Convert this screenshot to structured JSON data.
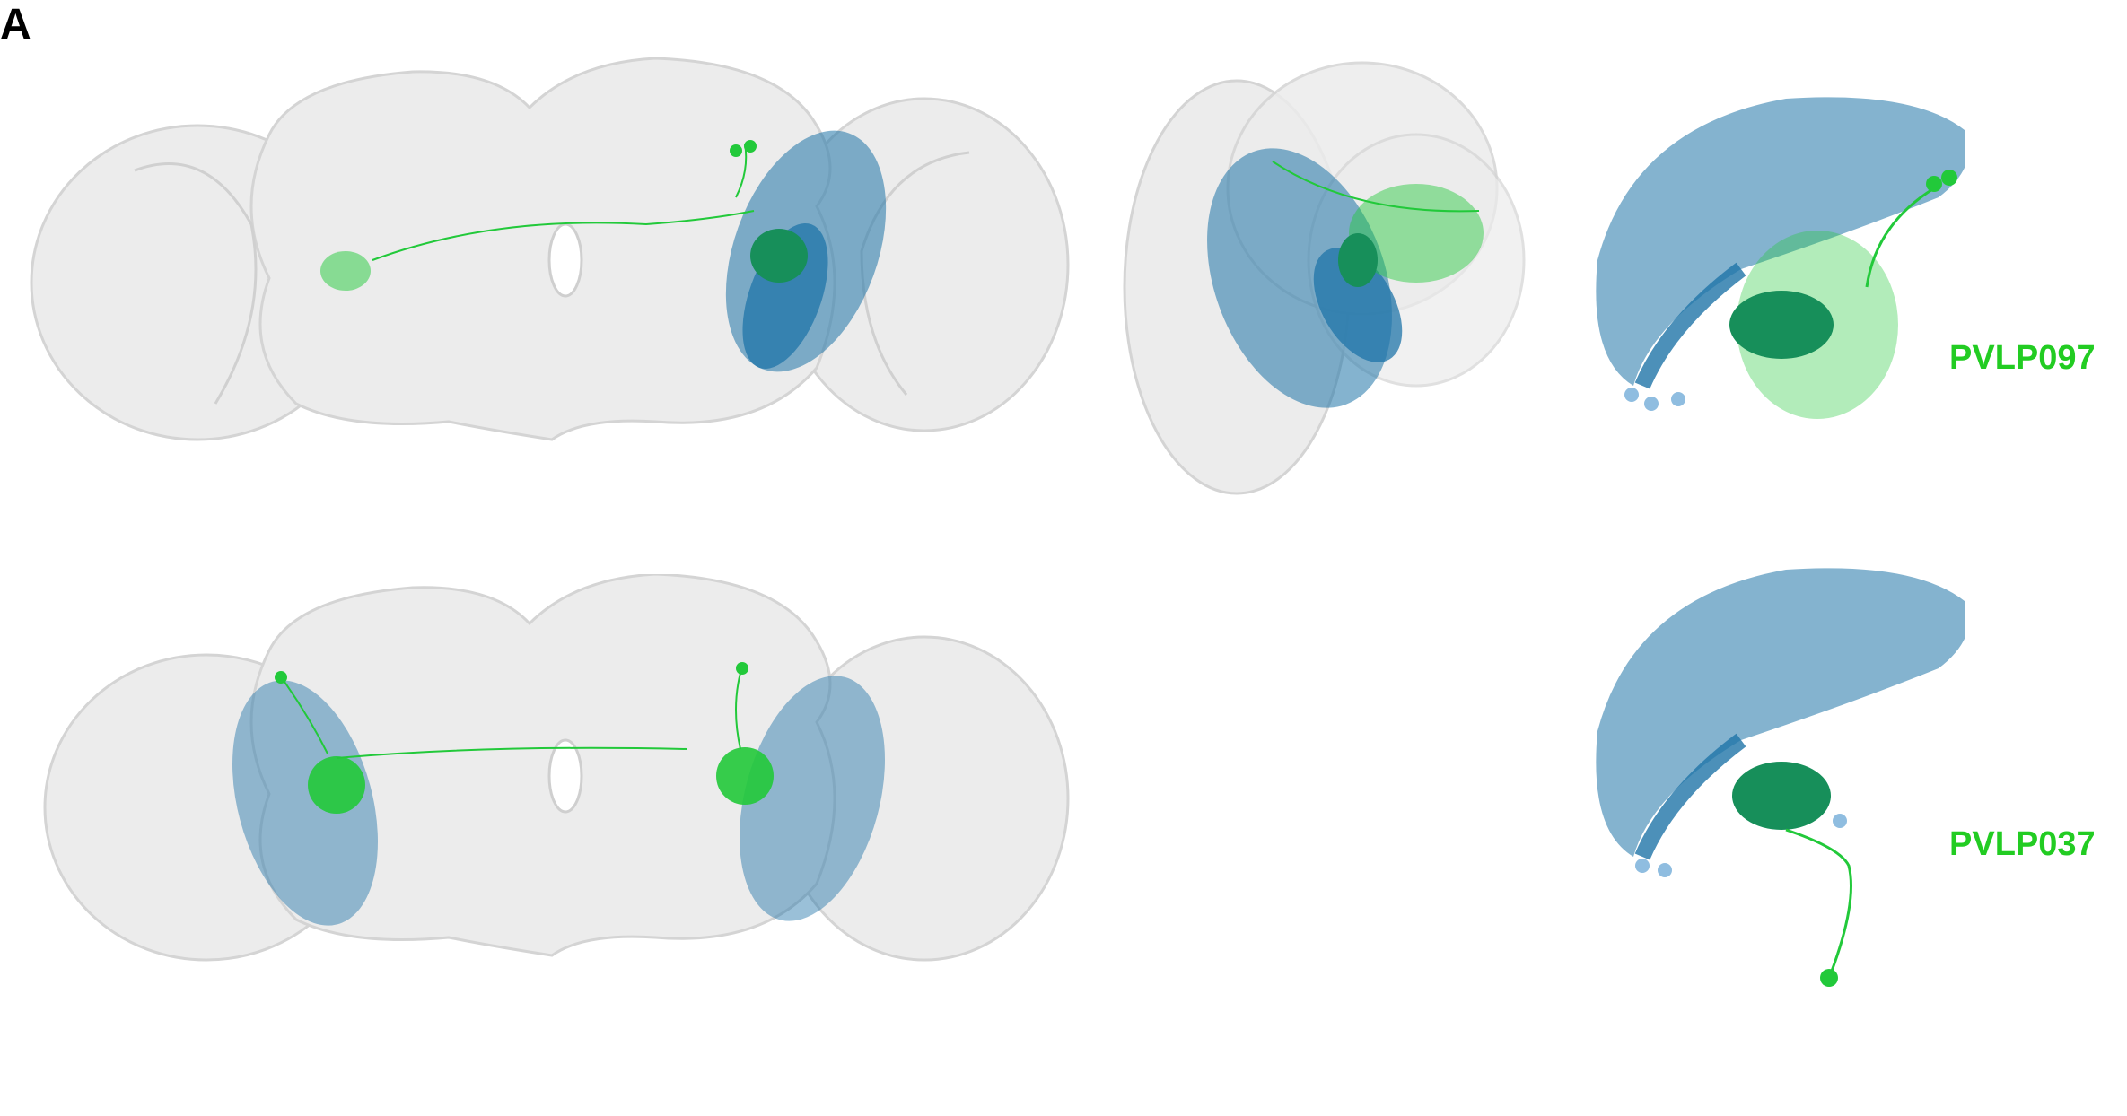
{
  "figure": {
    "panel_letter": "A",
    "cell_types": [
      {
        "label": "PVLP097"
      },
      {
        "label": "PVLP037"
      }
    ]
  },
  "colors": {
    "brain_fill": "#ececec",
    "brain_edge": "#d6d6d6",
    "neuron_green": "#22c93a",
    "neuron_blue": "#1f74a8",
    "neuron_blue_light": "#5aa0c8",
    "label_green": "#22cc22"
  },
  "icons": {
    "brain_outline": "fly-brain-mesh-icon",
    "green_neuron": "green-neuron-icon",
    "blue_neuron": "blue-neuron-icon"
  }
}
